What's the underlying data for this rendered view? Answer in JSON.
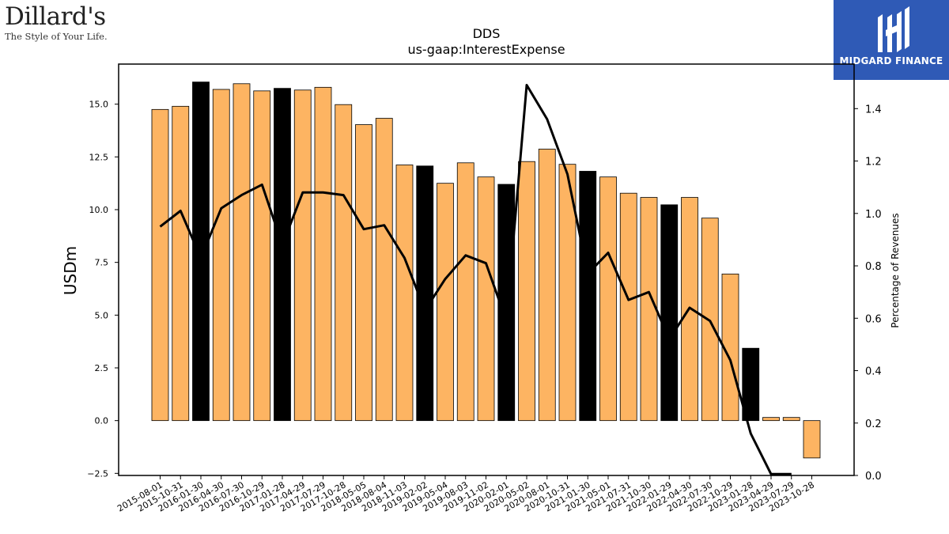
{
  "brand": {
    "name": "Dillard's",
    "tagline": "The Style of Your Life."
  },
  "badge": {
    "name": "MIDGARD FINANCE",
    "background": "#2f5ab6"
  },
  "chart_data": {
    "type": "bar",
    "title": "DDS",
    "subtitle": "us-gaap:InterestExpense",
    "ylabel": "USDm",
    "y2label": "Percentage of Revenues",
    "ylim": [
      -2.6,
      16.9
    ],
    "y2lim": [
      0.0,
      1.57
    ],
    "yticks": [
      "−2.5",
      "0.0",
      "2.5",
      "5.0",
      "7.5",
      "10.0",
      "12.5",
      "15.0"
    ],
    "y2ticks": [
      "0.0",
      "0.2",
      "0.4",
      "0.6",
      "0.8",
      "1.0",
      "1.2",
      "1.4"
    ],
    "categories": [
      "2015-08-01",
      "2015-10-31",
      "2016-01-30",
      "2016-04-30",
      "2016-07-30",
      "2016-10-29",
      "2017-01-28",
      "2017-04-29",
      "2017-07-29",
      "2017-10-28",
      "2018-05-05",
      "2018-08-04",
      "2018-11-03",
      "2019-02-02",
      "2019-05-04",
      "2019-08-03",
      "2019-11-02",
      "2020-02-01",
      "2020-05-02",
      "2020-08-01",
      "2020-10-31",
      "2021-01-30",
      "2021-05-01",
      "2021-07-31",
      "2021-10-30",
      "2022-01-29",
      "2022-04-30",
      "2022-07-30",
      "2022-10-29",
      "2023-01-28",
      "2023-04-29",
      "2023-07-29",
      "2023-10-28"
    ],
    "series": [
      {
        "type": "bar",
        "axis": "left",
        "values": [
          14.75,
          14.9,
          16.05,
          15.7,
          15.97,
          15.63,
          15.75,
          15.67,
          15.8,
          14.98,
          14.03,
          14.33,
          12.12,
          12.07,
          11.25,
          12.22,
          11.55,
          11.2,
          12.28,
          12.87,
          12.15,
          11.82,
          11.55,
          10.78,
          10.58,
          10.23,
          10.58,
          9.6,
          6.95,
          3.43,
          0.15,
          0.15,
          -1.77
        ],
        "fiscal_q4": [
          false,
          false,
          true,
          false,
          false,
          false,
          true,
          false,
          false,
          false,
          false,
          false,
          false,
          true,
          false,
          false,
          false,
          true,
          false,
          false,
          false,
          true,
          false,
          false,
          false,
          true,
          false,
          false,
          false,
          true,
          false,
          false,
          false
        ]
      },
      {
        "type": "line",
        "axis": "right",
        "values": [
          0.95,
          1.01,
          0.83,
          1.02,
          1.07,
          1.11,
          0.88,
          1.08,
          1.08,
          1.07,
          0.94,
          0.955,
          0.83,
          0.63,
          0.75,
          0.84,
          0.81,
          0.59,
          1.49,
          1.36,
          1.15,
          0.77,
          0.85,
          0.67,
          0.7,
          0.52,
          0.64,
          0.59,
          0.44,
          0.16,
          0.005,
          0.005,
          null
        ]
      }
    ],
    "colors": {
      "bar": "#fdb462",
      "bar_q4": "#000000",
      "line": "#000000"
    }
  }
}
